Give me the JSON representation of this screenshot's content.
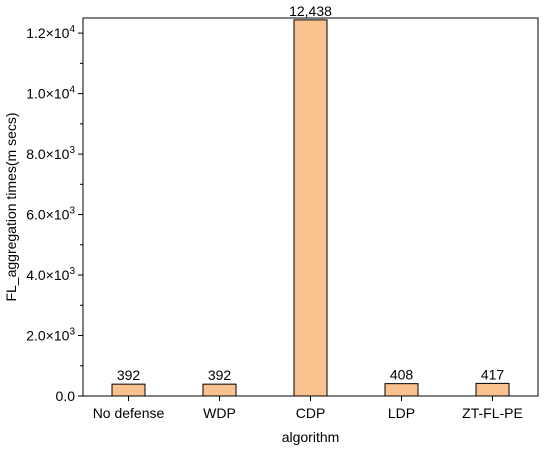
{
  "chart_data": {
    "type": "bar",
    "title": "",
    "xlabel": "algorithm",
    "ylabel": "FL_aggregation times(m secs)",
    "categories": [
      "No defense",
      "WDP",
      "CDP",
      "LDP",
      "ZT-FL-PE"
    ],
    "values": [
      392,
      392,
      12438,
      408,
      417
    ],
    "data_labels": [
      "392",
      "392",
      "12,438",
      "408",
      "417"
    ],
    "ylim": [
      0,
      12500
    ],
    "yticks": [
      {
        "value": 0,
        "mantissa": "0.0",
        "exp": ""
      },
      {
        "value": 2000,
        "mantissa": "2.0×10",
        "exp": "3"
      },
      {
        "value": 4000,
        "mantissa": "4.0×10",
        "exp": "3"
      },
      {
        "value": 6000,
        "mantissa": "6.0×10",
        "exp": "3"
      },
      {
        "value": 8000,
        "mantissa": "8.0×10",
        "exp": "3"
      },
      {
        "value": 10000,
        "mantissa": "1.0×10",
        "exp": "4"
      },
      {
        "value": 12000,
        "mantissa": "1.2×10",
        "exp": "4"
      }
    ],
    "grid": false,
    "legend": "none",
    "bar_fill": "#F9C28F",
    "bar_stroke": "#000000"
  }
}
